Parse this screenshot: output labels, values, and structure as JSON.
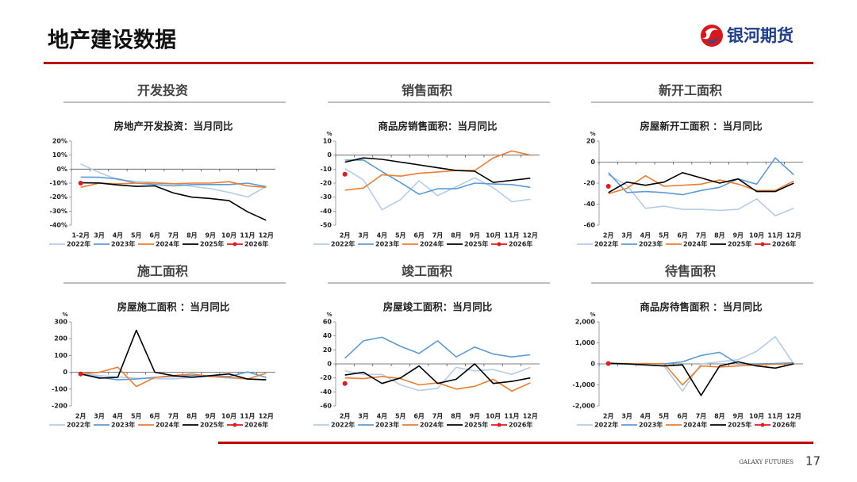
{
  "header": {
    "title": "地产建设数据",
    "logo": "银河期货"
  },
  "sections": [
    "开发投资",
    "销售面积",
    "新开工面积",
    "施工面积",
    "竣工面积",
    "待售面积"
  ],
  "footer": {
    "brand": "GALAXY FUTURES",
    "page": 17
  },
  "chart_data": [
    {
      "type": "line",
      "title": "房地产开发投资：当月同比",
      "categories": [
        "1-2月",
        "3月",
        "4月",
        "5月",
        "6月",
        "7月",
        "8月",
        "9月",
        "10月",
        "11月",
        "12月"
      ],
      "ylim": [
        -40,
        20
      ],
      "yticks": [
        {
          "value": -40,
          "label": "-40%"
        },
        {
          "value": -30,
          "label": "-30%"
        },
        {
          "value": -20,
          "label": "-20%"
        },
        {
          "value": -10,
          "label": "-10%"
        },
        {
          "value": 0,
          "label": "0%"
        },
        {
          "value": 10,
          "label": "10%"
        },
        {
          "value": 20,
          "label": "20%"
        }
      ],
      "series": [
        {
          "name": "2022年",
          "color": "#b4cde8",
          "values": [
            3.7,
            -2.4,
            -7.5,
            -8.8,
            -9.4,
            -10.2,
            -12.3,
            -13.9,
            -16.6,
            -19.9,
            -12.5
          ]
        },
        {
          "name": "2023年",
          "color": "#5b9bd5",
          "values": [
            -5.7,
            -5.8,
            -7,
            -10,
            -11,
            -12,
            -11,
            -11,
            -11,
            -10,
            -12.5
          ]
        },
        {
          "name": "2024年",
          "color": "#ed7d31",
          "values": [
            -13,
            -10,
            -10.5,
            -10,
            -10,
            -10.5,
            -10,
            -10,
            -9,
            -12,
            -13
          ]
        },
        {
          "name": "2025年",
          "color": "#000000",
          "values": [
            -9.8,
            -9.9,
            -11.3,
            -12.3,
            -12,
            -17,
            -20,
            -21,
            -22.5,
            -30.5,
            -36.5
          ]
        },
        {
          "name": "2026年",
          "color": "#e31a1c",
          "marker": "circle",
          "values": [
            -10,
            null,
            null,
            null,
            null,
            null,
            null,
            null,
            null,
            null,
            null
          ]
        }
      ]
    },
    {
      "type": "line",
      "title": "商品房销售面积：当月同比",
      "ylabel": "%",
      "categories": [
        "2月",
        "3月",
        "4月",
        "5月",
        "6月",
        "7月",
        "8月",
        "9月",
        "10月",
        "11月",
        "12月"
      ],
      "ylim": [
        -50,
        10
      ],
      "yticks": [
        -50,
        -40,
        -30,
        -20,
        -10,
        0,
        10
      ],
      "series": [
        {
          "name": "2022年",
          "color": "#b4cde8",
          "values": [
            -9.6,
            -17.7,
            -39,
            -31.8,
            -18.3,
            -28.9,
            -22.6,
            -16.2,
            -23.2,
            -33.3,
            -31.5
          ]
        },
        {
          "name": "2023年",
          "color": "#5b9bd5",
          "values": [
            -3.6,
            -3.5,
            -11.8,
            -19.6,
            -28,
            -24,
            -24,
            -20,
            -20.6,
            -21,
            -23
          ]
        },
        {
          "name": "2024年",
          "color": "#ed7d31",
          "values": [
            -25,
            -23.5,
            -14,
            -15,
            -13,
            -12,
            -11,
            -11,
            -2,
            3,
            0
          ]
        },
        {
          "name": "2025年",
          "color": "#000000",
          "values": [
            -5,
            -2,
            -3,
            -5,
            -7,
            -9,
            -11,
            -11.5,
            -19.5,
            -18,
            -16.5
          ]
        },
        {
          "name": "2026年",
          "color": "#e31a1c",
          "marker": "circle",
          "values": [
            -13.6,
            null,
            null,
            null,
            null,
            null,
            null,
            null,
            null,
            null,
            null
          ]
        }
      ]
    },
    {
      "type": "line",
      "title": "房屋新开工面积 ：当月同比",
      "ylabel": "%",
      "categories": [
        "2月",
        "3月",
        "4月",
        "5月",
        "6月",
        "7月",
        "8月",
        "9月",
        "10月",
        "11月",
        "12月"
      ],
      "ylim": [
        -60,
        20
      ],
      "yticks": [
        -60,
        -40,
        -20,
        0,
        20
      ],
      "series": [
        {
          "name": "2022年",
          "color": "#b4cde8",
          "values": [
            -12,
            -22,
            -44,
            -42,
            -45,
            -45,
            -46,
            -45,
            -35,
            -51,
            -44
          ]
        },
        {
          "name": "2023年",
          "color": "#5b9bd5",
          "values": [
            -10,
            -29,
            -28,
            -29,
            -31,
            -27,
            -24,
            -16,
            -21,
            4,
            -12
          ]
        },
        {
          "name": "2024年",
          "color": "#ed7d31",
          "values": [
            -30,
            -25,
            -13,
            -23,
            -22,
            -21,
            -17,
            -21,
            -27,
            -27,
            -18
          ]
        },
        {
          "name": "2025年",
          "color": "#000000",
          "values": [
            -29,
            -19,
            -22,
            -19,
            -10,
            -15,
            -20,
            -16,
            -28,
            -28,
            -20
          ]
        },
        {
          "name": "2026年",
          "color": "#e31a1c",
          "marker": "circle",
          "values": [
            -23,
            null,
            null,
            null,
            null,
            null,
            null,
            null,
            null,
            null,
            null
          ]
        }
      ]
    },
    {
      "type": "line",
      "title": "房屋施工面积 ：当月同比",
      "ylabel": "%",
      "categories": [
        "2月",
        "3月",
        "4月",
        "5月",
        "6月",
        "7月",
        "8月",
        "9月",
        "10月",
        "11月",
        "12月"
      ],
      "ylim": [
        -200,
        300
      ],
      "yticks": [
        -200,
        -100,
        0,
        100,
        200,
        300
      ],
      "series": [
        {
          "name": "2022年",
          "color": "#b4cde8",
          "values": [
            -5,
            -20,
            -28,
            -35,
            -38,
            -40,
            -30,
            -25,
            -35,
            -40,
            -45
          ]
        },
        {
          "name": "2023年",
          "color": "#5b9bd5",
          "values": [
            -10,
            -30,
            -45,
            -40,
            -30,
            -25,
            -20,
            -22,
            -25,
            2,
            -30
          ]
        },
        {
          "name": "2024年",
          "color": "#ed7d31",
          "values": [
            -10,
            0,
            30,
            -85,
            -30,
            -20,
            -10,
            -25,
            -30,
            -40,
            -5
          ]
        },
        {
          "name": "2025年",
          "color": "#000000",
          "values": [
            -10,
            -35,
            -30,
            250,
            0,
            -20,
            -30,
            -20,
            -10,
            -40,
            -45
          ]
        },
        {
          "name": "2026年",
          "color": "#e31a1c",
          "marker": "circle",
          "values": [
            -10,
            null,
            null,
            null,
            null,
            null,
            null,
            null,
            null,
            null,
            null
          ]
        }
      ]
    },
    {
      "type": "line",
      "title": "房屋竣工面积：当月同比",
      "ylabel": "%",
      "categories": [
        "2月",
        "3月",
        "4月",
        "5月",
        "6月",
        "7月",
        "8月",
        "9月",
        "10月",
        "11月",
        "12月"
      ],
      "ylim": [
        -60,
        60
      ],
      "yticks": [
        -60,
        -40,
        -20,
        0,
        20,
        40,
        60
      ],
      "series": [
        {
          "name": "2022年",
          "color": "#b4cde8",
          "values": [
            -10,
            -15,
            -15,
            -30,
            -38,
            -35,
            -5,
            -10,
            -8,
            -15,
            -5
          ]
        },
        {
          "name": "2023年",
          "color": "#5b9bd5",
          "values": [
            8,
            33,
            38,
            25,
            15,
            33,
            10,
            24,
            14,
            10,
            13
          ]
        },
        {
          "name": "2024年",
          "color": "#ed7d31",
          "values": [
            -20,
            -21,
            -18,
            -21,
            -30,
            -27,
            -36,
            -32,
            -22,
            -39,
            -27
          ]
        },
        {
          "name": "2025年",
          "color": "#000000",
          "values": [
            -16,
            -12,
            -28,
            -20,
            -3,
            -28,
            -22,
            0,
            -28,
            -25,
            -20
          ]
        },
        {
          "name": "2026年",
          "color": "#e31a1c",
          "marker": "circle",
          "values": [
            -28,
            null,
            null,
            null,
            null,
            null,
            null,
            null,
            null,
            null,
            null
          ]
        }
      ]
    },
    {
      "type": "line",
      "title": "商品房待售面积 ：当月同比",
      "ylabel": "%",
      "categories": [
        "2月",
        "3月",
        "4月",
        "5月",
        "6月",
        "7月",
        "8月",
        "9月",
        "10月",
        "11月",
        "12月"
      ],
      "ylim": [
        -2000,
        2000
      ],
      "yticks": [
        {
          "value": -2000,
          "label": "-2,000"
        },
        {
          "value": -1000,
          "label": "-1,000"
        },
        0,
        {
          "value": 1000,
          "label": "1,000"
        },
        {
          "value": 2000,
          "label": "2,000"
        }
      ],
      "series": [
        {
          "name": "2022年",
          "color": "#b4cde8",
          "values": [
            0,
            -20,
            -50,
            -100,
            -1300,
            0,
            100,
            200,
            600,
            1300,
            0
          ]
        },
        {
          "name": "2023年",
          "color": "#5b9bd5",
          "values": [
            0,
            0,
            20,
            0,
            100,
            400,
            550,
            0,
            0,
            20,
            50
          ]
        },
        {
          "name": "2024年",
          "color": "#ed7d31",
          "values": [
            20,
            20,
            0,
            20,
            -1000,
            -100,
            -150,
            -100,
            -50,
            -20,
            0
          ]
        },
        {
          "name": "2025年",
          "color": "#000000",
          "values": [
            30,
            0,
            -50,
            -100,
            -50,
            -1500,
            -100,
            100,
            -100,
            -200,
            0
          ]
        },
        {
          "name": "2026年",
          "color": "#e31a1c",
          "marker": "circle",
          "values": [
            20,
            null,
            null,
            null,
            null,
            null,
            null,
            null,
            null,
            null,
            null
          ]
        }
      ]
    }
  ]
}
